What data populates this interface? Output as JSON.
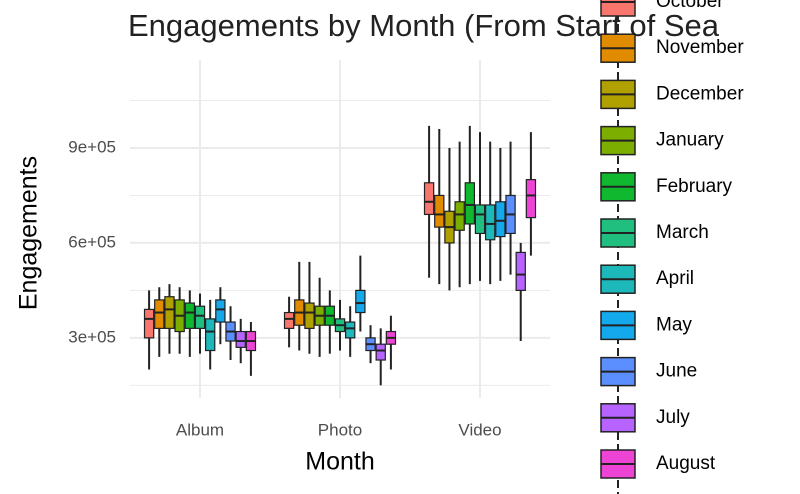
{
  "chart_data": {
    "type": "boxplot",
    "title": "Engagements by Month (From Start of Sea",
    "x_label": "Month",
    "y_label": "Engagements",
    "categories": [
      "Album",
      "Photo",
      "Video"
    ],
    "ylim": [
      110000,
      1178000
    ],
    "yticks": [
      {
        "value": 300000,
        "label": "3e+05"
      },
      {
        "value": 600000,
        "label": "6e+05"
      },
      {
        "value": 900000,
        "label": "9e+05"
      }
    ],
    "y_minor_ticks": [
      150000,
      450000,
      750000,
      1050000
    ],
    "grid": true,
    "legend_position": "right",
    "series": [
      {
        "name": "October",
        "color": "#F8766D",
        "values": [
          [
            200000,
            300000,
            360000,
            390000,
            450000
          ],
          [
            270000,
            330000,
            360000,
            380000,
            430000
          ],
          [
            490000,
            690000,
            730000,
            790000,
            970000
          ]
        ]
      },
      {
        "name": "November",
        "color": "#E08B00",
        "values": [
          [
            240000,
            330000,
            380000,
            420000,
            460000
          ],
          [
            260000,
            340000,
            380000,
            420000,
            540000
          ],
          [
            470000,
            650000,
            690000,
            750000,
            960000
          ]
        ]
      },
      {
        "name": "December",
        "color": "#B0A000",
        "values": [
          [
            250000,
            330000,
            390000,
            430000,
            470000
          ],
          [
            250000,
            330000,
            380000,
            410000,
            540000
          ],
          [
            450000,
            600000,
            650000,
            700000,
            900000
          ]
        ]
      },
      {
        "name": "January",
        "color": "#7CAE00",
        "values": [
          [
            250000,
            320000,
            370000,
            420000,
            460000
          ],
          [
            240000,
            340000,
            370000,
            400000,
            490000
          ],
          [
            460000,
            640000,
            690000,
            730000,
            920000
          ]
        ]
      },
      {
        "name": "February",
        "color": "#10B830",
        "values": [
          [
            240000,
            330000,
            380000,
            410000,
            450000
          ],
          [
            250000,
            340000,
            370000,
            400000,
            450000
          ],
          [
            470000,
            660000,
            720000,
            790000,
            970000
          ]
        ]
      },
      {
        "name": "March",
        "color": "#20BF80",
        "values": [
          [
            250000,
            330000,
            370000,
            400000,
            440000
          ],
          [
            260000,
            320000,
            340000,
            360000,
            420000
          ],
          [
            480000,
            630000,
            690000,
            720000,
            950000
          ]
        ]
      },
      {
        "name": "April",
        "color": "#1DB8BA",
        "values": [
          [
            200000,
            260000,
            320000,
            360000,
            420000
          ],
          [
            240000,
            300000,
            330000,
            350000,
            400000
          ],
          [
            470000,
            610000,
            660000,
            720000,
            920000
          ]
        ]
      },
      {
        "name": "May",
        "color": "#14A8EC",
        "values": [
          [
            280000,
            350000,
            390000,
            420000,
            460000
          ],
          [
            320000,
            380000,
            410000,
            450000,
            560000
          ],
          [
            480000,
            620000,
            670000,
            730000,
            900000
          ]
        ]
      },
      {
        "name": "June",
        "color": "#5B8FFF",
        "values": [
          [
            230000,
            290000,
            320000,
            350000,
            400000
          ],
          [
            220000,
            260000,
            280000,
            300000,
            340000
          ],
          [
            500000,
            630000,
            690000,
            750000,
            920000
          ]
        ]
      },
      {
        "name": "July",
        "color": "#B763FF",
        "values": [
          [
            220000,
            270000,
            290000,
            320000,
            360000
          ],
          [
            150000,
            230000,
            260000,
            280000,
            330000
          ],
          [
            290000,
            450000,
            500000,
            570000,
            600000
          ]
        ]
      },
      {
        "name": "August",
        "color": "#EE44D6",
        "values": [
          [
            180000,
            260000,
            290000,
            320000,
            350000
          ],
          [
            200000,
            280000,
            300000,
            320000,
            370000
          ],
          [
            560000,
            680000,
            750000,
            800000,
            950000
          ]
        ]
      }
    ]
  }
}
